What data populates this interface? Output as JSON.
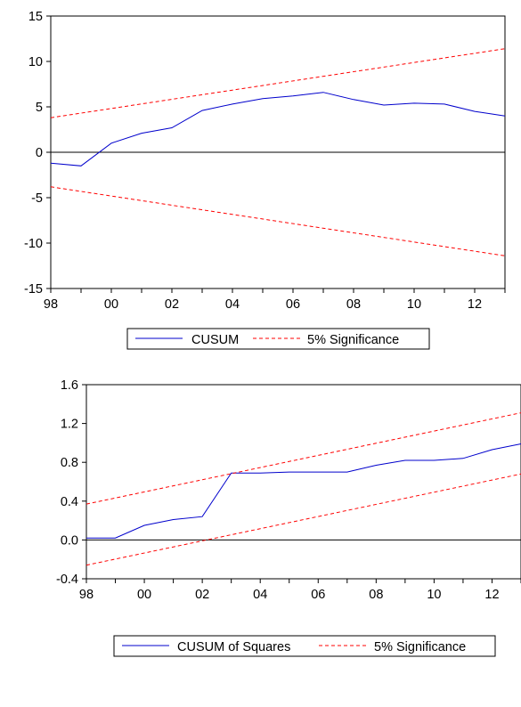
{
  "chart_data": [
    {
      "type": "line",
      "title": "",
      "xlabel": "",
      "ylabel": "",
      "x": [
        1998,
        1999,
        2000,
        2001,
        2002,
        2003,
        2004,
        2005,
        2006,
        2007,
        2008,
        2009,
        2010,
        2011,
        2012,
        2013
      ],
      "xlim": [
        1998,
        2013
      ],
      "ylim": [
        -15,
        15
      ],
      "x_ticks": [
        1998,
        2000,
        2002,
        2004,
        2006,
        2008,
        2010,
        2012
      ],
      "x_tick_labels": [
        "98",
        "00",
        "02",
        "04",
        "06",
        "08",
        "10",
        "12"
      ],
      "y_ticks": [
        15,
        10,
        5,
        0,
        -5,
        -10,
        -15
      ],
      "y_tick_labels": [
        "15",
        "10",
        "5",
        "0",
        "-5",
        "-10",
        "-15"
      ],
      "zero_line": true,
      "grid": false,
      "legend_position": "bottom",
      "series": [
        {
          "name": "CUSUM",
          "color": "#0000cc",
          "style": "solid",
          "values": [
            -1.2,
            -1.5,
            1.0,
            2.1,
            2.7,
            4.6,
            5.3,
            5.9,
            6.2,
            6.6,
            5.8,
            5.2,
            5.4,
            5.3,
            4.5,
            4.0
          ]
        },
        {
          "name": "5% Significance",
          "color": "#ff0000",
          "style": "dashed",
          "x": [
            1998,
            2013
          ],
          "values": [
            3.8,
            11.4
          ]
        },
        {
          "name": "",
          "color": "#ff0000",
          "style": "dashed",
          "x": [
            1998,
            2013
          ],
          "values": [
            -3.8,
            -11.4
          ]
        }
      ]
    },
    {
      "type": "line",
      "title": "",
      "xlabel": "",
      "ylabel": "",
      "x": [
        1998,
        1999,
        2000,
        2001,
        2002,
        2003,
        2004,
        2005,
        2006,
        2007,
        2008,
        2009,
        2010,
        2011,
        2012,
        2013
      ],
      "xlim": [
        1998,
        2013
      ],
      "ylim": [
        -0.4,
        1.6
      ],
      "x_ticks": [
        1998,
        2000,
        2002,
        2004,
        2006,
        2008,
        2010,
        2012
      ],
      "x_tick_labels": [
        "98",
        "00",
        "02",
        "04",
        "06",
        "08",
        "10",
        "12"
      ],
      "y_ticks": [
        1.6,
        1.2,
        0.8,
        0.4,
        0.0,
        -0.4
      ],
      "y_tick_labels": [
        "1.6",
        "1.2",
        "0.8",
        "0.4",
        "0.0",
        "-0.4"
      ],
      "zero_line": true,
      "grid": false,
      "legend_position": "bottom",
      "series": [
        {
          "name": "CUSUM of Squares",
          "color": "#0000cc",
          "style": "solid",
          "values": [
            0.02,
            0.02,
            0.15,
            0.21,
            0.24,
            0.69,
            0.69,
            0.7,
            0.7,
            0.7,
            0.77,
            0.82,
            0.82,
            0.84,
            0.93,
            0.99
          ]
        },
        {
          "name": "5% Significance",
          "color": "#ff0000",
          "style": "dashed",
          "x": [
            1998,
            2013
          ],
          "values": [
            0.37,
            1.31
          ]
        },
        {
          "name": "",
          "color": "#ff0000",
          "style": "dashed",
          "x": [
            1998,
            2013
          ],
          "values": [
            -0.26,
            0.68
          ]
        }
      ]
    }
  ]
}
